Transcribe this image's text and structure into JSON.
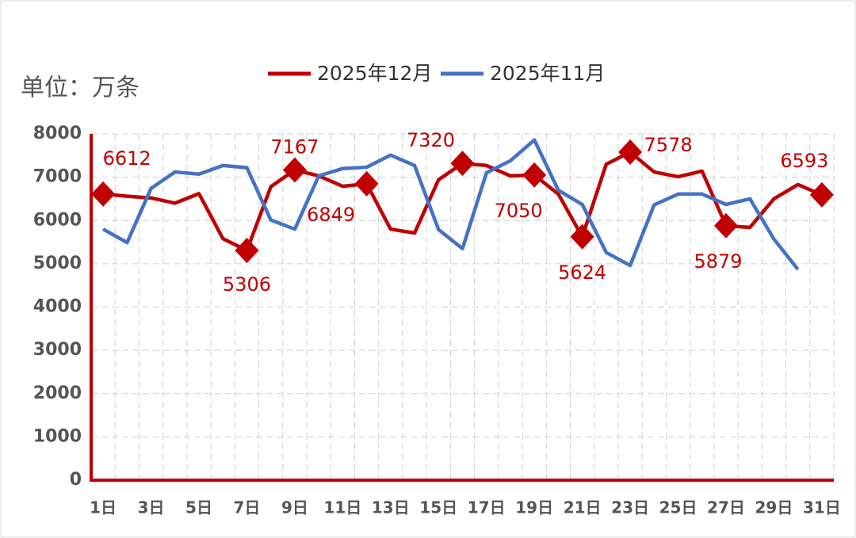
{
  "chart_data": {
    "type": "line",
    "unit_label": "单位：万条",
    "categories": [
      "1日",
      null,
      "3日",
      null,
      "5日",
      null,
      "7日",
      null,
      "9日",
      null,
      "11日",
      null,
      "13日",
      null,
      "15日",
      null,
      "17日",
      null,
      "19日",
      null,
      "21日",
      null,
      "23日",
      null,
      "25日",
      null,
      "27日",
      null,
      "29日",
      null,
      "31日"
    ],
    "series": [
      {
        "name": "2025年12月",
        "color": "#c00000",
        "values": [
          6612,
          6560,
          6520,
          6400,
          6620,
          5580,
          5306,
          6780,
          7167,
          7030,
          6790,
          6849,
          5800,
          5710,
          6940,
          7320,
          7270,
          7030,
          7050,
          6610,
          5624,
          7300,
          7578,
          7120,
          7010,
          7140,
          5879,
          5840,
          6500,
          6830,
          6593
        ],
        "value_labels": [
          "6612",
          null,
          null,
          null,
          null,
          null,
          "5306",
          null,
          "7167",
          null,
          null,
          "6849",
          null,
          null,
          null,
          "7320",
          null,
          null,
          "7050",
          null,
          "5624",
          null,
          "7578",
          null,
          null,
          null,
          "5879",
          null,
          null,
          null,
          "6593"
        ]
      },
      {
        "name": "2025年11月",
        "color": "#4472c4",
        "values": [
          5800,
          5490,
          6740,
          7120,
          7070,
          7270,
          7220,
          6010,
          5800,
          7030,
          7200,
          7230,
          7510,
          7270,
          5790,
          5350,
          7100,
          7380,
          7860,
          6700,
          6370,
          5260,
          4960,
          6360,
          6610,
          6610,
          6370,
          6500,
          5570,
          4870,
          null
        ]
      }
    ],
    "ylim": [
      0,
      8000
    ],
    "yticks": [
      0,
      1000,
      2000,
      3000,
      4000,
      5000,
      6000,
      7000,
      8000
    ],
    "grid": true
  }
}
